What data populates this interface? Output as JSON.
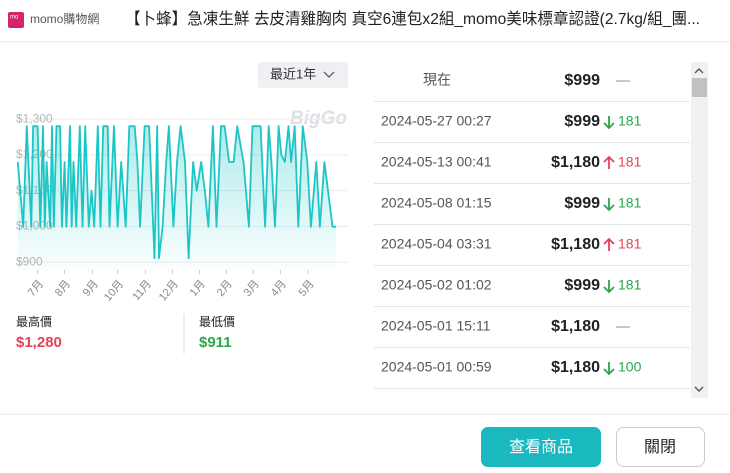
{
  "header": {
    "brand": "momo購物網",
    "title": "【卜蜂】急凍生鮮 去皮清雞胸肉 真空6連包x2組_momo美味標章認證(2.7kg/組_團..."
  },
  "range_select": "最近1年",
  "chart_data": {
    "type": "line",
    "watermark": "BigGo",
    "color": "#1cc6c6",
    "x": [
      2,
      8,
      12,
      17,
      19,
      24,
      27,
      30,
      32,
      34,
      38,
      40,
      42,
      45,
      49,
      51,
      54,
      56,
      60,
      62,
      64,
      67,
      71,
      74,
      77,
      81,
      84,
      87,
      91,
      94,
      97,
      102,
      104,
      109,
      113,
      117,
      122,
      126,
      132,
      135,
      138,
      143,
      148,
      154,
      157,
      159,
      163,
      167,
      170,
      175,
      179,
      183,
      188,
      192,
      197,
      201,
      206,
      210,
      214,
      219,
      223,
      228,
      232,
      237,
      242,
      246,
      253,
      259,
      263,
      268,
      272,
      277,
      281,
      284,
      288,
      292,
      295,
      299,
      303,
      306,
      310,
      314,
      319,
      324,
      328,
      334,
      338,
      343,
      347,
      352,
      356
    ],
    "values": [
      1180,
      999,
      1280,
      999,
      1280,
      1280,
      999,
      1280,
      999,
      1180,
      999,
      1280,
      999,
      1280,
      1280,
      999,
      1180,
      999,
      1280,
      999,
      1180,
      999,
      1280,
      999,
      1280,
      999,
      1100,
      999,
      1280,
      999,
      1280,
      1280,
      999,
      1280,
      999,
      1180,
      999,
      1280,
      1280,
      1180,
      999,
      1280,
      1280,
      911,
      1280,
      911,
      999,
      1180,
      1280,
      999,
      1180,
      1280,
      1180,
      911,
      1180,
      1100,
      1180,
      1100,
      999,
      1280,
      999,
      1280,
      1280,
      1180,
      1180,
      1280,
      1180,
      999,
      1280,
      1280,
      1280,
      999,
      1280,
      1180,
      999,
      1280,
      1200,
      1180,
      1280,
      1180,
      1280,
      999,
      1280,
      1180,
      999,
      1180,
      999,
      1180,
      1100,
      999,
      999
    ],
    "xlim": [
      0,
      367
    ],
    "xticks": [
      {
        "value": 24,
        "label": "7月"
      },
      {
        "value": 54,
        "label": "8月"
      },
      {
        "value": 85,
        "label": "9月"
      },
      {
        "value": 113,
        "label": "10月"
      },
      {
        "value": 144,
        "label": "11月"
      },
      {
        "value": 174,
        "label": "12月"
      },
      {
        "value": 204,
        "label": "1月"
      },
      {
        "value": 234,
        "label": "2月"
      },
      {
        "value": 264,
        "label": "3月"
      },
      {
        "value": 294,
        "label": "4月"
      },
      {
        "value": 325,
        "label": "5月"
      }
    ],
    "ylim": [
      878,
      1331
    ],
    "yticks": [
      {
        "value": 900,
        "label": "$900"
      },
      {
        "value": 1000,
        "label": "$1,000"
      },
      {
        "value": 1100,
        "label": "$1,100"
      },
      {
        "value": 1200,
        "label": "$1,200"
      },
      {
        "value": 1300,
        "label": "$1,300"
      }
    ],
    "grid": true
  },
  "stats": {
    "high_label": "最高價",
    "high": "$1,280",
    "low_label": "最低價",
    "low": "$911"
  },
  "history": [
    {
      "date": "現在",
      "price": "$999",
      "change": "—",
      "trend": null
    },
    {
      "date": "2024-05-27 00:27",
      "price": "$999",
      "change": "181",
      "trend": "down"
    },
    {
      "date": "2024-05-13 00:41",
      "price": "$1,180",
      "change": "181",
      "trend": "up"
    },
    {
      "date": "2024-05-08 01:15",
      "price": "$999",
      "change": "181",
      "trend": "down"
    },
    {
      "date": "2024-05-04 03:31",
      "price": "$1,180",
      "change": "181",
      "trend": "up"
    },
    {
      "date": "2024-05-02 01:02",
      "price": "$999",
      "change": "181",
      "trend": "down"
    },
    {
      "date": "2024-05-01 15:11",
      "price": "$1,180",
      "change": "—",
      "trend": null
    },
    {
      "date": "2024-05-01 00:59",
      "price": "$1,180",
      "change": "100",
      "trend": "down"
    }
  ],
  "buttons": {
    "view": "查看商品",
    "close": "關閉"
  }
}
